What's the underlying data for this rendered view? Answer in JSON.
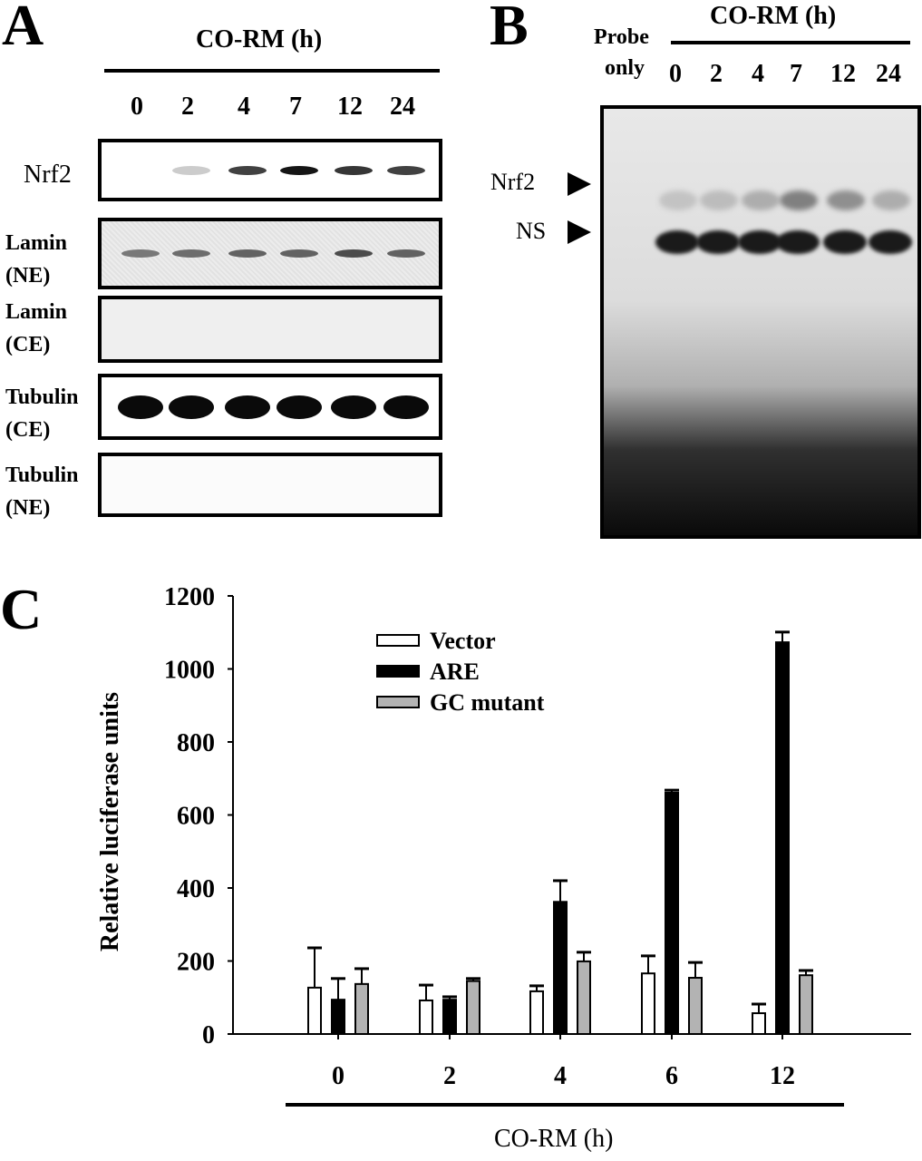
{
  "panelA": {
    "letter": "A",
    "treatment_label": "CO-RM (h)",
    "lanes": [
      "0",
      "2",
      "4",
      "7",
      "12",
      "24"
    ],
    "blots": [
      {
        "label_line1": "Nrf2",
        "label_line2": ""
      },
      {
        "label_line1": "Lamin",
        "label_line2": "(NE)"
      },
      {
        "label_line1": "Lamin",
        "label_line2": "(CE)"
      },
      {
        "label_line1": "Tubulin",
        "label_line2": "(CE)"
      },
      {
        "label_line1": "Tubulin",
        "label_line2": "(NE)"
      }
    ]
  },
  "panelB": {
    "letter": "B",
    "treatment_label": "CO-RM (h)",
    "probe_label_line1": "Probe",
    "probe_label_line2": "only",
    "lanes": [
      "0",
      "2",
      "4",
      "7",
      "12",
      "24"
    ],
    "markers": [
      {
        "label": "Nrf2"
      },
      {
        "label": "NS"
      }
    ]
  },
  "panelC": {
    "letter": "C",
    "xlabel": "CO-RM (h)",
    "ylabel": "Relative luciferase units"
  },
  "chart_data": {
    "type": "bar",
    "title": "",
    "xlabel": "CO-RM (h)",
    "ylabel": "Relative luciferase units",
    "ylim": [
      0,
      1200
    ],
    "yticks": [
      0,
      200,
      400,
      600,
      800,
      1000,
      1200
    ],
    "categories": [
      "0",
      "2",
      "4",
      "6",
      "12"
    ],
    "legend_position": "upper-center",
    "grid": false,
    "series": [
      {
        "name": "Vector",
        "color": "#ffffff",
        "values": [
          127,
          92,
          117,
          166,
          57
        ],
        "error": [
          109,
          42,
          15,
          48,
          25
        ]
      },
      {
        "name": "ARE",
        "color": "#000000",
        "values": [
          94,
          94,
          362,
          661,
          1073
        ],
        "error": [
          58,
          8,
          58,
          7,
          28
        ]
      },
      {
        "name": "GC mutant",
        "color": "#b3b3b3",
        "values": [
          137,
          145,
          199,
          154,
          161
        ],
        "error": [
          42,
          7,
          25,
          42,
          13
        ]
      }
    ]
  }
}
